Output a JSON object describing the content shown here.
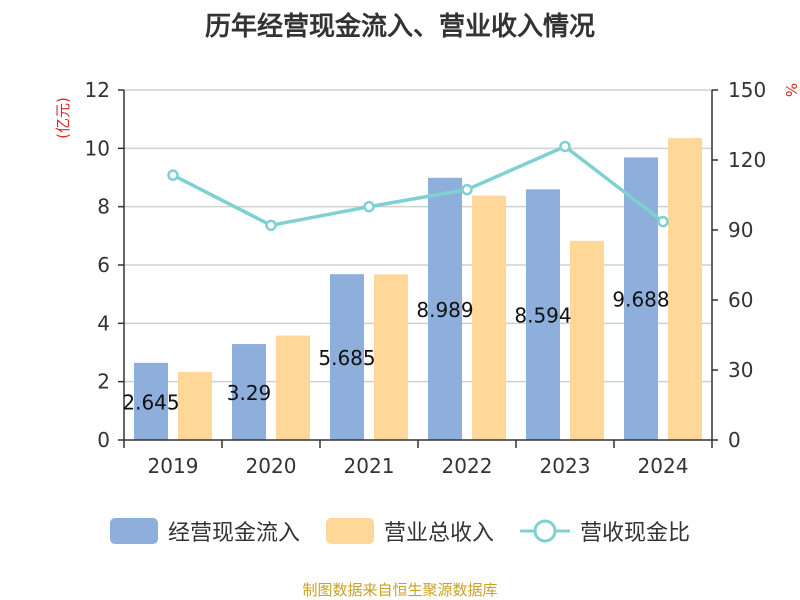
{
  "chart_data": {
    "type": "bar",
    "title": "历年经营现金流入、营业收入情况",
    "categories": [
      "2019",
      "2020",
      "2021",
      "2022",
      "2023",
      "2024"
    ],
    "series": [
      {
        "name": "经营现金流入",
        "type": "bar",
        "axis": "left",
        "color": "#8eaedb",
        "values": [
          2.645,
          3.29,
          5.685,
          8.989,
          8.594,
          9.688
        ]
      },
      {
        "name": "营业总收入",
        "type": "bar",
        "axis": "left",
        "color": "#ffd899",
        "values": [
          2.33,
          3.58,
          5.68,
          8.38,
          6.83,
          10.35
        ]
      },
      {
        "name": "营收现金比",
        "type": "line",
        "axis": "right",
        "color": "#7fd1d1",
        "values": [
          113.5,
          92.0,
          100.0,
          107.3,
          125.8,
          93.6
        ]
      }
    ],
    "data_labels": [
      "2.645",
      "3.29",
      "5.685",
      "8.989",
      "8.594",
      "9.688"
    ],
    "ylabel_left": "(亿元)",
    "ylabel_right": "%",
    "ylim_left": [
      0,
      12
    ],
    "ylim_right": [
      0,
      150
    ],
    "yticks_left": [
      "0",
      "2",
      "4",
      "6",
      "8",
      "10",
      "12"
    ],
    "yticks_right": [
      "0",
      "30",
      "60",
      "90",
      "120",
      "150"
    ],
    "grid": true,
    "legend_position": "bottom"
  },
  "legend": {
    "items": [
      {
        "label": "经营现金流入",
        "color": "#8eaedb"
      },
      {
        "label": "营业总收入",
        "color": "#ffd899"
      },
      {
        "label": "营收现金比",
        "color": "#7fd1d1"
      }
    ]
  },
  "source": "制图数据来自恒生聚源数据库"
}
